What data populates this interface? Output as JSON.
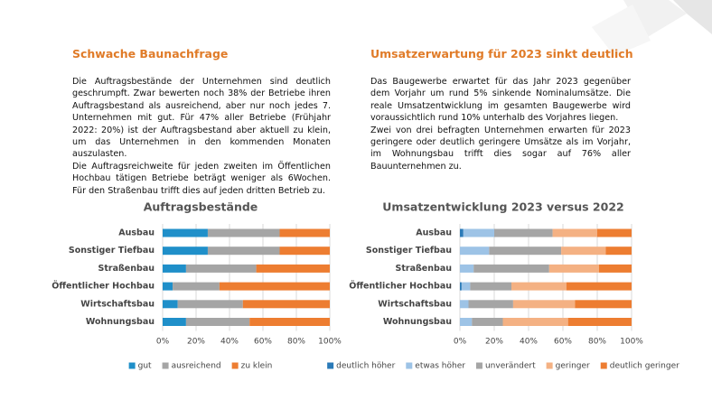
{
  "sections": [
    {
      "heading": "Schwache Baunachfrage",
      "paragraphs": [
        "Die Auftragsbestände der Unternehmen sind deutlich geschrumpft. Zwar bewerten noch 38% der Betriebe ihren Auftragsbestand als ausreichend, aber nur noch jedes 7. Unternehmen mit gut. Für 47% aller Betriebe (Frühjahr 2022: 20%) ist der Auftragsbestand aber aktuell zu klein, um das Unternehmen in den kommenden Monaten auszulasten.",
        "Die Auftragsreichweite für jeden zweiten im Öffentlichen Hochbau tätigen Betriebe beträgt weniger als 6Wochen. Für den Straßenbau trifft dies auf jeden dritten Betrieb zu."
      ]
    },
    {
      "heading": "Umsatzerwartung für 2023 sinkt deutlich",
      "paragraphs": [
        "Das Baugewerbe erwartet für das Jahr 2023 gegenüber dem Vorjahr um rund 5% sinkende Nominalumsätze. Die reale Umsatzentwicklung im gesamten Baugewerbe wird voraussichtlich rund 10% unterhalb des Vorjahres liegen.",
        "Zwei von drei befragten Unternehmen erwarten für 2023 geringere oder deutlich geringere Umsätze als im Vorjahr, im Wohnungsbau trifft dies sogar auf 76% aller Bauunternehmen zu."
      ]
    }
  ],
  "chart_data": [
    {
      "type": "stacked-bar-horizontal",
      "title": "Auftragsbestände",
      "categories": [
        "Ausbau",
        "Sonstiger Tiefbau",
        "Straßenbau",
        "Öffentlicher Hochbau",
        "Wirtschaftsbau",
        "Wohnungsbau"
      ],
      "series": [
        {
          "name": "gut",
          "color": "#1f8fc9",
          "values": [
            27,
            27,
            14,
            6,
            9,
            14
          ]
        },
        {
          "name": "ausreichend",
          "color": "#a5a5a5",
          "values": [
            43,
            43,
            42,
            28,
            39,
            38
          ]
        },
        {
          "name": "zu klein",
          "color": "#ed7d31",
          "values": [
            30,
            30,
            44,
            66,
            52,
            48
          ]
        }
      ],
      "xlim": [
        0,
        100
      ],
      "xticks": [
        {
          "value": 0,
          "label": "0%"
        },
        {
          "value": 20,
          "label": "20%"
        },
        {
          "value": 40,
          "label": "40%"
        },
        {
          "value": 60,
          "label": "60%"
        },
        {
          "value": 80,
          "label": "80%"
        },
        {
          "value": 100,
          "label": "100%"
        }
      ],
      "grid": true,
      "legend": "bottom"
    },
    {
      "type": "stacked-bar-horizontal",
      "title": "Umsatzentwicklung 2023 versus 2022",
      "categories": [
        "Ausbau",
        "Sonstiger Tiefbau",
        "Straßenbau",
        "Öffentlicher Hochbau",
        "Wirtschaftsbau",
        "Wohnungsbau"
      ],
      "series": [
        {
          "name": "deutlich höher",
          "color": "#2a7ab8",
          "values": [
            2,
            0,
            0,
            1,
            0,
            0
          ]
        },
        {
          "name": "etwas höher",
          "color": "#9dc3e6",
          "values": [
            18,
            17,
            8,
            5,
            5,
            7
          ]
        },
        {
          "name": "unverändert",
          "color": "#a5a5a5",
          "values": [
            34,
            42,
            44,
            24,
            26,
            18
          ]
        },
        {
          "name": "geringer",
          "color": "#f4b183",
          "values": [
            26,
            26,
            29,
            32,
            36,
            38
          ]
        },
        {
          "name": "deutlich geringer",
          "color": "#ed7d31",
          "values": [
            20,
            15,
            19,
            38,
            33,
            37
          ]
        }
      ],
      "xlim": [
        0,
        100
      ],
      "xticks": [
        {
          "value": 0,
          "label": "0%"
        },
        {
          "value": 20,
          "label": "20%"
        },
        {
          "value": 40,
          "label": "40%"
        },
        {
          "value": 60,
          "label": "60%"
        },
        {
          "value": 80,
          "label": "80%"
        },
        {
          "value": 100,
          "label": "100%"
        }
      ],
      "grid": true,
      "legend": "bottom"
    }
  ]
}
